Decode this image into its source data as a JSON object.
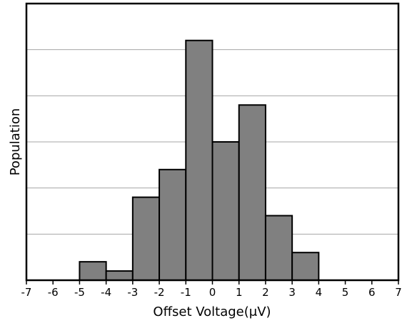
{
  "chart_data": {
    "type": "bar",
    "subtype": "histogram",
    "title": "",
    "xlabel": "Offset Voltage(μV)",
    "ylabel": "Population",
    "xlim": [
      -7,
      7
    ],
    "xticks": [
      "-7",
      "-6",
      "-5",
      "-4",
      "-3",
      "-2",
      "-1",
      "0",
      "1",
      "2",
      "3",
      "4",
      "5",
      "6",
      "7"
    ],
    "ylim": [
      0,
      6
    ],
    "y_tick_labels_shown": false,
    "grid": "horizontal",
    "bins": [
      {
        "x0": -5,
        "x1": -4,
        "value": 0.4
      },
      {
        "x0": -4,
        "x1": -3,
        "value": 0.2
      },
      {
        "x0": -3,
        "x1": -2,
        "value": 1.8
      },
      {
        "x0": -2,
        "x1": -1,
        "value": 2.4
      },
      {
        "x0": -1,
        "x1": 0,
        "value": 5.2
      },
      {
        "x0": 0,
        "x1": 1,
        "value": 3.0
      },
      {
        "x0": 1,
        "x1": 2,
        "value": 3.8
      },
      {
        "x0": 2,
        "x1": 3,
        "value": 1.4
      },
      {
        "x0": 3,
        "x1": 4,
        "value": 0.6
      }
    ],
    "colors": {
      "bar_fill": "#808080",
      "bar_stroke": "#000000",
      "grid": "#a6a6a6",
      "frame": "#000000"
    }
  }
}
